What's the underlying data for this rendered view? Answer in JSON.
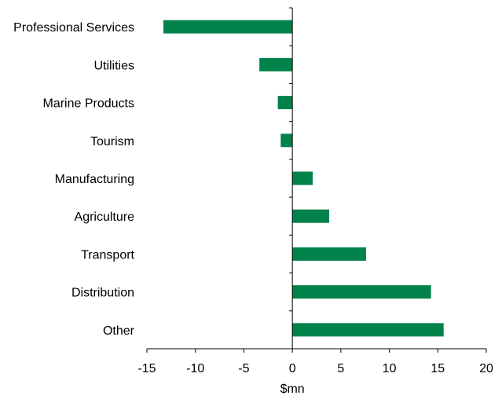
{
  "chart_data": {
    "type": "bar",
    "orientation": "horizontal",
    "title": "",
    "xlabel": "$mn",
    "ylabel": "",
    "xlim": [
      -15,
      20
    ],
    "xticks": [
      -15,
      -10,
      -5,
      0,
      5,
      10,
      15,
      20
    ],
    "xtick_labels": [
      "-15",
      "-10",
      "-5",
      "0",
      "5",
      "10",
      "15",
      "20"
    ],
    "grid": false,
    "legend": "none",
    "bar_color": "#00824a",
    "categories": [
      "Professional Services",
      "Utilities",
      "Marine Products",
      "Tourism",
      "Manufacturing",
      "Agriculture",
      "Transport",
      "Distribution",
      "Other"
    ],
    "values": [
      -13.3,
      -3.4,
      -1.5,
      -1.2,
      2.1,
      3.8,
      7.6,
      14.3,
      15.6
    ]
  }
}
